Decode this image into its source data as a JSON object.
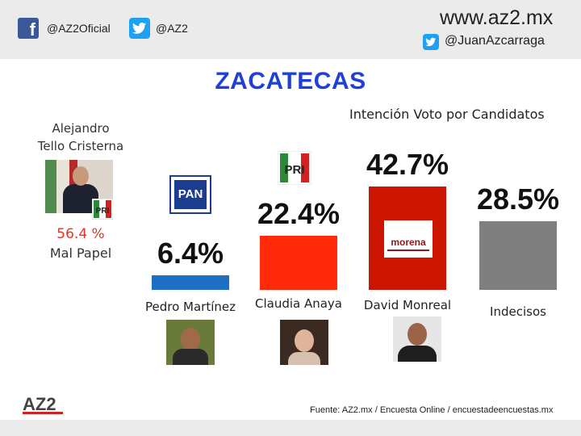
{
  "header": {
    "facebook_handle": "@AZ2Oficial",
    "twitter_handle": "@AZ2",
    "website": "www.az2.mx",
    "personal_twitter": "@JuanAzcarraga"
  },
  "title": "ZACATECAS",
  "subtitle": "Intención Voto por Candidatos",
  "excluded_candidate": {
    "name_line1": "Alejandro",
    "name_line2": "Tello  Cristerna",
    "percent": "56.4 %",
    "label": "Mal Papel"
  },
  "chart_data": {
    "type": "bar",
    "title": "Intención Voto por Candidatos",
    "categories": [
      "Pedro Martínez",
      "Claudia Anaya",
      "David Monreal",
      "Indecisos"
    ],
    "values": [
      6.4,
      22.4,
      42.7,
      28.5
    ],
    "value_labels": [
      "6.4%",
      "22.4%",
      "42.7%",
      "28.5%"
    ],
    "colors": [
      "#1e6fc4",
      "#ff2a0a",
      "#cc1500",
      "#7f7f7f"
    ],
    "party_logos": [
      "PAN",
      "PRI",
      "morena",
      ""
    ]
  },
  "logos": {
    "pan": "PAN",
    "pri": "PRI",
    "morena": "morena",
    "az2": "AZ2"
  },
  "source": "Fuente: AZ2.mx  / Encuesta Online / encuestadeencuestas.mx"
}
